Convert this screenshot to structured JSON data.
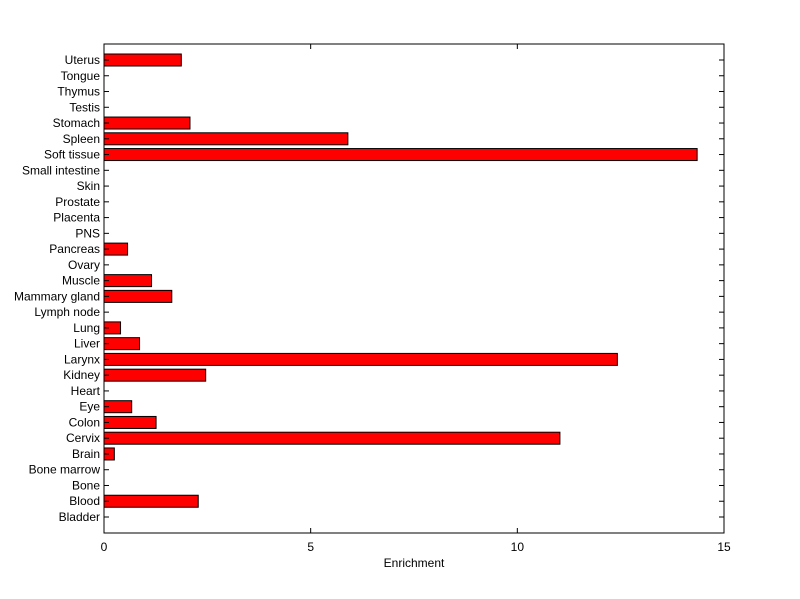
{
  "chart_data": {
    "type": "bar",
    "orientation": "horizontal",
    "categories": [
      "Bladder",
      "Blood",
      "Bone",
      "Bone marrow",
      "Brain",
      "Cervix",
      "Colon",
      "Eye",
      "Heart",
      "Kidney",
      "Larynx",
      "Liver",
      "Lung",
      "Lymph node",
      "Mammary gland",
      "Muscle",
      "Ovary",
      "Pancreas",
      "PNS",
      "Placenta",
      "Prostate",
      "Skin",
      "Small intestine",
      "Soft tissue",
      "Spleen",
      "Stomach",
      "Testis",
      "Thymus",
      "Tongue",
      "Uterus"
    ],
    "values": [
      0,
      2.28,
      0,
      0,
      0.25,
      11.03,
      1.26,
      0.67,
      0,
      2.46,
      12.42,
      0.86,
      0.4,
      0,
      1.64,
      1.15,
      0,
      0.57,
      0,
      0,
      0,
      0,
      0,
      14.35,
      5.9,
      2.08,
      0,
      0,
      0,
      1.87
    ],
    "xlabel": "Enrichment",
    "xlim": [
      0,
      15
    ],
    "xticks": [
      0,
      5,
      10,
      15
    ],
    "bar_color": "#ff0000",
    "grid": false
  }
}
